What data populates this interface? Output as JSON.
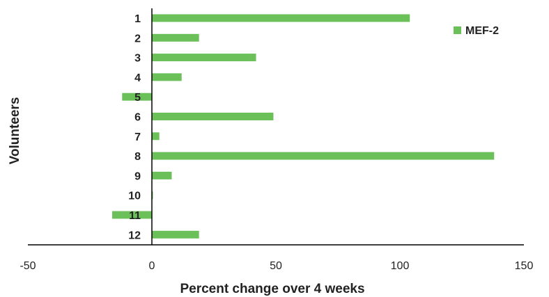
{
  "chart_data": {
    "type": "bar",
    "orientation": "horizontal",
    "categories": [
      "1",
      "2",
      "3",
      "4",
      "5",
      "6",
      "7",
      "8",
      "9",
      "10",
      "11",
      "12"
    ],
    "series": [
      {
        "name": "MEF-2",
        "color": "#6cc05a",
        "values": [
          104,
          19,
          42,
          12,
          -12,
          49,
          3,
          138,
          8,
          0,
          -16,
          19
        ]
      }
    ],
    "xlabel": "Percent change over 4 weeks",
    "ylabel": "Volunteers",
    "xlim": [
      -50,
      150
    ],
    "xticks": [
      "-50",
      "0",
      "50",
      "100",
      "150"
    ],
    "grid": false,
    "legend_position": "top-right"
  }
}
